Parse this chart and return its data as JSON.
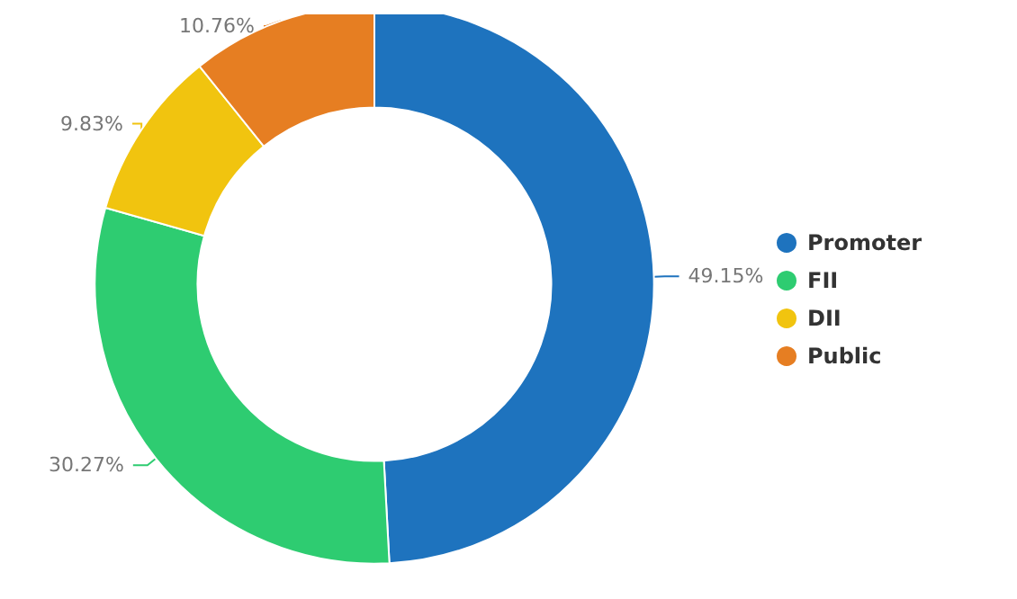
{
  "chart_data": {
    "type": "donut",
    "categories": [
      "Promoter",
      "FII",
      "DII",
      "Public"
    ],
    "values": [
      49.15,
      30.27,
      9.83,
      10.76
    ],
    "value_labels": [
      "49.15%",
      "30.27%",
      "9.83%",
      "10.76%"
    ],
    "colors": [
      "#1e73be",
      "#2ecc71",
      "#f1c40f",
      "#e67e22"
    ],
    "legend": "right"
  }
}
